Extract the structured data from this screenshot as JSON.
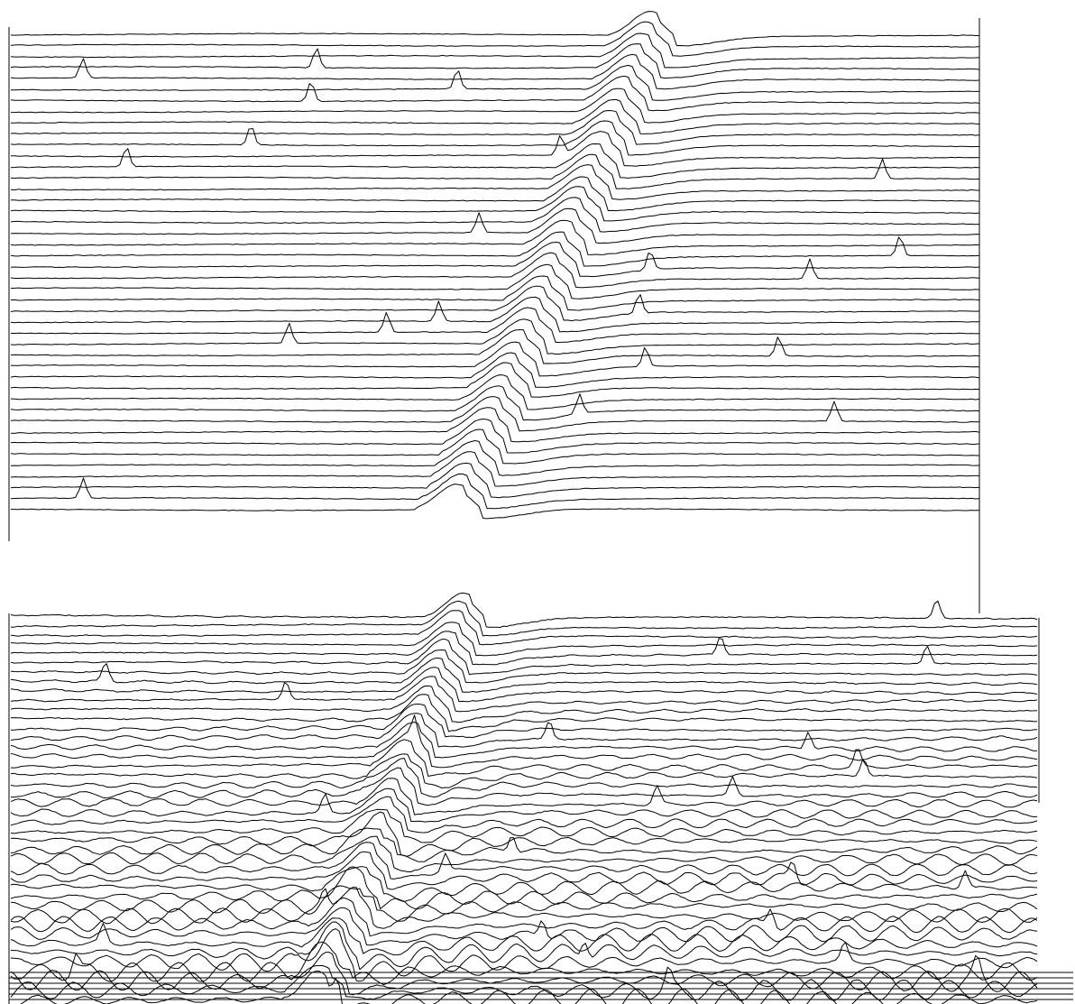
{
  "chart_data": [
    {
      "type": "line",
      "description_panel": "upper",
      "title": "",
      "xlabel": "",
      "ylabel": "",
      "series_count": 44,
      "grid": false,
      "legend": "none",
      "samples_per_trace": 240,
      "burst_center_first_trace": 0.66,
      "burst_center_last_trace": 0.46,
      "burst_width": 0.04,
      "noise_amplitude": 0.4,
      "oscillation_amplitude": 0.0,
      "spike_amplitude": 22
    },
    {
      "type": "line",
      "description_panel": "lower",
      "title": "",
      "xlabel": "",
      "ylabel": "",
      "series_count": 42,
      "grid": false,
      "legend": "none",
      "samples_per_trace": 300,
      "burst_center_first_trace": 0.44,
      "burst_center_last_trace": 0.3,
      "burst_width": 0.035,
      "noise_amplitude": 0.5,
      "oscillation_amplitude_first_trace": 0.5,
      "oscillation_amplitude_last_trace": 12,
      "spike_amplitude": 20
    }
  ],
  "colors": {
    "trace": "#000000",
    "background": "#ffffff"
  }
}
